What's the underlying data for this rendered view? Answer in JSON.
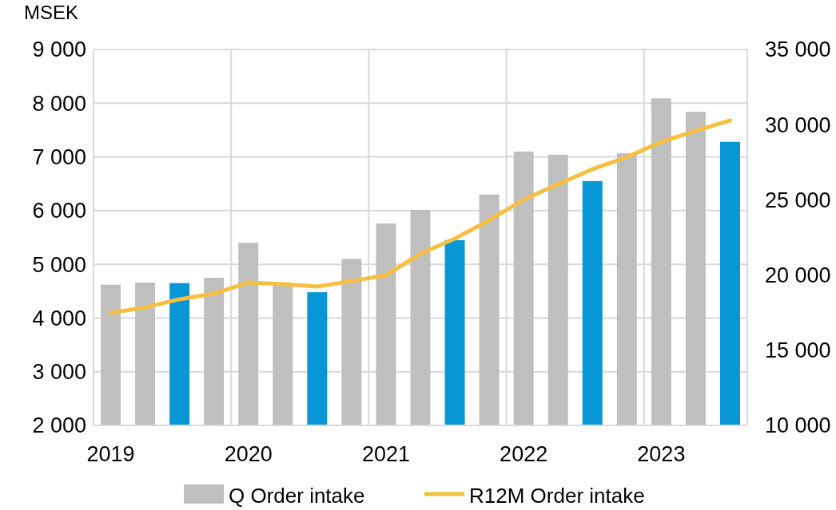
{
  "chart_data": {
    "type": "bar",
    "ylabel": "MSEK",
    "categories": [
      "2019",
      null,
      null,
      null,
      "2020",
      null,
      null,
      null,
      "2021",
      null,
      null,
      null,
      "2022",
      null,
      null,
      null,
      "2023",
      null,
      null
    ],
    "series": [
      {
        "name": "Q Order intake",
        "color": "#bfbfbf",
        "colors": [
          "#bfbfbf",
          "#bfbfbf",
          "#0796d6",
          "#bfbfbf",
          "#bfbfbf",
          "#bfbfbf",
          "#0796d6",
          "#bfbfbf",
          "#bfbfbf",
          "#bfbfbf",
          "#0796d6",
          "#bfbfbf",
          "#bfbfbf",
          "#bfbfbf",
          "#0796d6",
          "#bfbfbf",
          "#bfbfbf",
          "#bfbfbf",
          "#0796d6"
        ],
        "values": [
          4620,
          4660,
          4650,
          4750,
          5400,
          4630,
          4480,
          5100,
          5760,
          6010,
          5450,
          6300,
          7100,
          7040,
          6550,
          7070,
          8090,
          7840,
          7280
        ]
      },
      {
        "name": "R12M Order intake",
        "type": "line",
        "axis": "y2",
        "color": "#f5bf42",
        "values": [
          17480,
          17850,
          18390,
          18760,
          19500,
          19400,
          19240,
          19600,
          19980,
          21410,
          22420,
          23640,
          25020,
          26030,
          27040,
          27840,
          28850,
          29590,
          30280
        ]
      }
    ],
    "ylim": [
      2000,
      9000
    ],
    "yticks": [
      {
        "value": 2000,
        "label": "2 000"
      },
      {
        "value": 3000,
        "label": "3 000"
      },
      {
        "value": 4000,
        "label": "4 000"
      },
      {
        "value": 5000,
        "label": "5 000"
      },
      {
        "value": 6000,
        "label": "6 000"
      },
      {
        "value": 7000,
        "label": "7 000"
      },
      {
        "value": 8000,
        "label": "8 000"
      },
      {
        "value": 9000,
        "label": "9 000"
      }
    ],
    "y2lim": [
      10000,
      35000
    ],
    "y2ticks": [
      {
        "value": 10000,
        "label": "10 000"
      },
      {
        "value": 15000,
        "label": "15 000"
      },
      {
        "value": 20000,
        "label": "20 000"
      },
      {
        "value": 25000,
        "label": "25 000"
      },
      {
        "value": 30000,
        "label": "30 000"
      },
      {
        "value": 35000,
        "label": "35 000"
      }
    ],
    "grid": true,
    "legend": "bottom",
    "line_style": "solid"
  }
}
